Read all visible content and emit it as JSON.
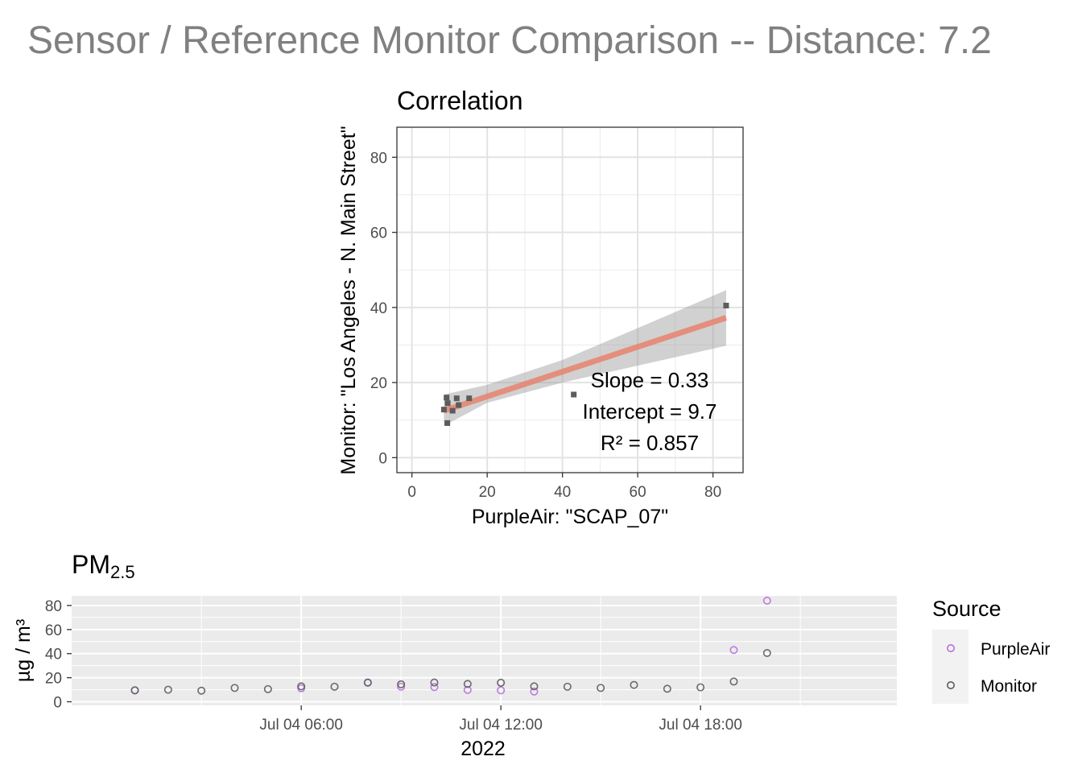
{
  "title": "Sensor / Reference Monitor Comparison -- Distance: 7.2",
  "colors": {
    "purpleair": "#b96ee0",
    "monitor": "#5c5c5c",
    "fit_line": "#e8836f",
    "ribbon": "#999999",
    "ts_background": "#ebebeb"
  },
  "chart_data": [
    {
      "type": "scatter",
      "title": "Correlation",
      "xlabel": "PurpleAir: \"SCAP_07\"",
      "ylabel": "Monitor: \"Los Angeles - N. Main Street\"",
      "xlim": [
        -4,
        88
      ],
      "ylim": [
        -4,
        88
      ],
      "xticks": [
        0,
        20,
        40,
        60,
        80
      ],
      "yticks": [
        0,
        20,
        40,
        60,
        80
      ],
      "grid": true,
      "points": [
        {
          "x": 9.2,
          "y": 16.0
        },
        {
          "x": 9.5,
          "y": 14.5
        },
        {
          "x": 8.5,
          "y": 12.8
        },
        {
          "x": 10.8,
          "y": 12.5
        },
        {
          "x": 9.4,
          "y": 9.2
        },
        {
          "x": 11.9,
          "y": 15.8
        },
        {
          "x": 12.4,
          "y": 14.0
        },
        {
          "x": 15.2,
          "y": 15.8
        },
        {
          "x": 43.0,
          "y": 16.8
        },
        {
          "x": 83.5,
          "y": 40.5
        }
      ],
      "fit": {
        "slope": 0.33,
        "intercept": 9.7,
        "x_range": [
          8.5,
          83.5
        ],
        "se_band": [
          {
            "x": 8.5,
            "lower": 8.5,
            "upper": 16.8
          },
          {
            "x": 20,
            "lower": 14.6,
            "upper": 19.4
          },
          {
            "x": 40,
            "lower": 20.0,
            "upper": 26.0
          },
          {
            "x": 60,
            "lower": 24.5,
            "upper": 34.5
          },
          {
            "x": 83.5,
            "lower": 29.8,
            "upper": 44.6
          }
        ]
      },
      "stats": [
        "Slope = 0.33",
        "Intercept = 9.7",
        "R² = 0.857"
      ]
    },
    {
      "type": "scatter",
      "title_main": "PM",
      "title_sub": "2.5",
      "xlabel": "2022",
      "ylabel": "µg / m³",
      "ylim": [
        -3,
        88
      ],
      "yticks": [
        0,
        20,
        40,
        60,
        80
      ],
      "xlim_hours": [
        -0.9,
        23.9
      ],
      "xticks": [
        {
          "hour": 6,
          "label": "Jul 04 06:00"
        },
        {
          "hour": 12,
          "label": "Jul 04 12:00"
        },
        {
          "hour": 18,
          "label": "Jul 04 18:00"
        }
      ],
      "legend": {
        "title": "Source",
        "position": "right",
        "entries": [
          "PurpleAir",
          "Monitor"
        ]
      },
      "series": [
        {
          "name": "PurpleAir",
          "points": [
            {
              "hour": 1,
              "y": 9.5
            },
            {
              "hour": 6,
              "y": 11.2
            },
            {
              "hour": 8,
              "y": 15.8
            },
            {
              "hour": 9,
              "y": 12.5
            },
            {
              "hour": 10,
              "y": 12.2
            },
            {
              "hour": 11,
              "y": 9.8
            },
            {
              "hour": 12,
              "y": 9.5
            },
            {
              "hour": 13,
              "y": 8.5
            },
            {
              "hour": 19,
              "y": 43.0
            },
            {
              "hour": 20,
              "y": 84.0
            }
          ]
        },
        {
          "name": "Monitor",
          "points": [
            {
              "hour": 1,
              "y": 9.5
            },
            {
              "hour": 2,
              "y": 10.0
            },
            {
              "hour": 3,
              "y": 9.2
            },
            {
              "hour": 4,
              "y": 11.5
            },
            {
              "hour": 5,
              "y": 10.5
            },
            {
              "hour": 6,
              "y": 12.8
            },
            {
              "hour": 7,
              "y": 12.5
            },
            {
              "hour": 8,
              "y": 16.0
            },
            {
              "hour": 9,
              "y": 14.5
            },
            {
              "hour": 10,
              "y": 16.0
            },
            {
              "hour": 11,
              "y": 14.8
            },
            {
              "hour": 12,
              "y": 15.8
            },
            {
              "hour": 13,
              "y": 12.8
            },
            {
              "hour": 14,
              "y": 12.5
            },
            {
              "hour": 15,
              "y": 11.5
            },
            {
              "hour": 16,
              "y": 14.0
            },
            {
              "hour": 17,
              "y": 10.8
            },
            {
              "hour": 18,
              "y": 12.0
            },
            {
              "hour": 19,
              "y": 16.8
            },
            {
              "hour": 20,
              "y": 40.5
            }
          ]
        }
      ]
    }
  ]
}
